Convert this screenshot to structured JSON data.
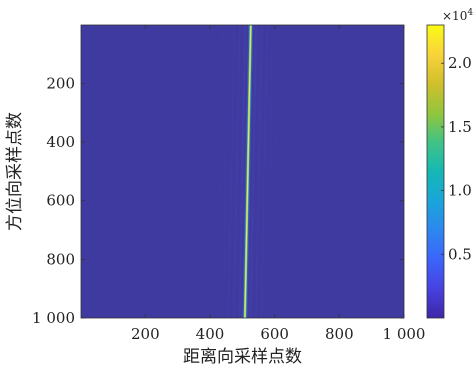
{
  "chart_data": {
    "type": "heatmap",
    "title": "",
    "xlabel": "距离向采样点数",
    "ylabel": "方位向采样点数",
    "xlim": [
      1,
      1000
    ],
    "ylim": [
      1,
      1000
    ],
    "y_reversed": true,
    "x_ticks": [
      200,
      400,
      600,
      800,
      1000
    ],
    "x_tick_labels": [
      "200",
      "400",
      "600",
      "800",
      "1 000"
    ],
    "y_ticks": [
      200,
      400,
      600,
      800,
      1000
    ],
    "y_tick_labels": [
      "200",
      "400",
      "600",
      "800",
      "1 000"
    ],
    "colorbar": {
      "min": 0,
      "max": 2.3,
      "ticks": [
        0.5,
        1.0,
        1.5,
        2.0
      ],
      "tick_labels": [
        "0.5",
        "1.0",
        "1.5",
        "2.0"
      ],
      "exponent_label": "×10",
      "exponent_power": "4",
      "colormap": "parula",
      "colors": [
        "#3e26a8",
        "#4742e0",
        "#3c64fb",
        "#2d87ef",
        "#1aa5da",
        "#15b8b4",
        "#41c386",
        "#93c53c",
        "#d1bf2c",
        "#f9d33a",
        "#f9fb15"
      ]
    },
    "background_color": "#3e3aa0",
    "ridge": {
      "description_value": "bright range-compressed line",
      "range_bin_at_azimuth_1": 526,
      "range_bin_at_azimuth_1000": 508,
      "peak_value": 2.3
    }
  }
}
